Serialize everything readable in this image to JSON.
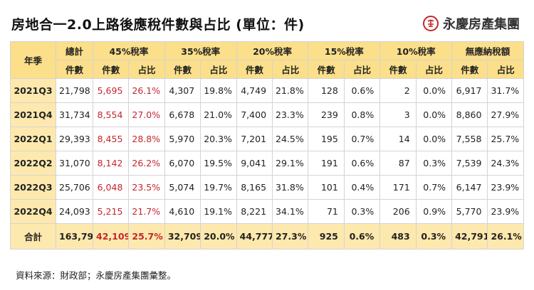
{
  "title": "房地合一2.0上路後應稅件數與占比 (單位：件)",
  "brand": {
    "name": "永慶房產集團",
    "logo_icon": "yungching-logo-icon",
    "color": "#c4262e"
  },
  "table": {
    "year_header": "年季",
    "groups": [
      "總計",
      "45%稅率",
      "35%稅率",
      "20%稅率",
      "15%稅率",
      "10%稅率",
      "無應納稅額"
    ],
    "total_sub": "件數",
    "sub_count": "件數",
    "sub_share": "占比",
    "rows": [
      {
        "label": "2021Q3",
        "total": "21,798",
        "cells": [
          [
            "5,695",
            "26.1%"
          ],
          [
            "4,307",
            "19.8%"
          ],
          [
            "4,749",
            "21.8%"
          ],
          [
            "128",
            "0.6%"
          ],
          [
            "2",
            "0.0%"
          ],
          [
            "6,917",
            "31.7%"
          ]
        ]
      },
      {
        "label": "2021Q4",
        "total": "31,734",
        "cells": [
          [
            "8,554",
            "27.0%"
          ],
          [
            "6,678",
            "21.0%"
          ],
          [
            "7,400",
            "23.3%"
          ],
          [
            "239",
            "0.8%"
          ],
          [
            "3",
            "0.0%"
          ],
          [
            "8,860",
            "27.9%"
          ]
        ]
      },
      {
        "label": "2022Q1",
        "total": "29,393",
        "cells": [
          [
            "8,455",
            "28.8%"
          ],
          [
            "5,970",
            "20.3%"
          ],
          [
            "7,201",
            "24.5%"
          ],
          [
            "195",
            "0.7%"
          ],
          [
            "14",
            "0.0%"
          ],
          [
            "7,558",
            "25.7%"
          ]
        ]
      },
      {
        "label": "2022Q2",
        "total": "31,070",
        "cells": [
          [
            "8,142",
            "26.2%"
          ],
          [
            "6,070",
            "19.5%"
          ],
          [
            "9,041",
            "29.1%"
          ],
          [
            "191",
            "0.6%"
          ],
          [
            "87",
            "0.3%"
          ],
          [
            "7,539",
            "24.3%"
          ]
        ]
      },
      {
        "label": "2022Q3",
        "total": "25,706",
        "cells": [
          [
            "6,048",
            "23.5%"
          ],
          [
            "5,074",
            "19.7%"
          ],
          [
            "8,165",
            "31.8%"
          ],
          [
            "101",
            "0.4%"
          ],
          [
            "171",
            "0.7%"
          ],
          [
            "6,147",
            "23.9%"
          ]
        ]
      },
      {
        "label": "2022Q4",
        "total": "24,093",
        "cells": [
          [
            "5,215",
            "21.7%"
          ],
          [
            "4,610",
            "19.1%"
          ],
          [
            "8,221",
            "34.1%"
          ],
          [
            "71",
            "0.3%"
          ],
          [
            "206",
            "0.9%"
          ],
          [
            "5,770",
            "23.9%"
          ]
        ]
      }
    ],
    "footer": {
      "label": "合計",
      "total": "163,794",
      "cells": [
        [
          "42,109",
          "25.7%"
        ],
        [
          "32,709",
          "20.0%"
        ],
        [
          "44,777",
          "27.3%"
        ],
        [
          "925",
          "0.6%"
        ],
        [
          "483",
          "0.3%"
        ],
        [
          "42,791",
          "26.1%"
        ]
      ]
    },
    "highlight_color": "#c4262e",
    "header_color": "#fbdf8a",
    "row_label_color": "#fde9ad"
  },
  "source": "資料來源：財政部；永慶房產集團彙整。"
}
